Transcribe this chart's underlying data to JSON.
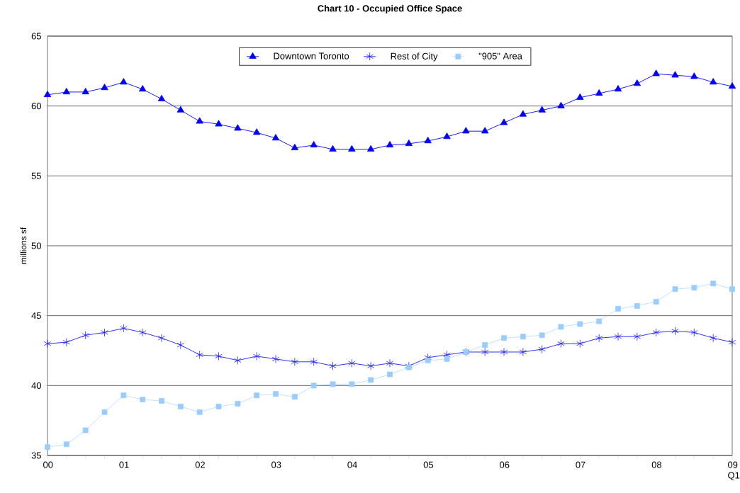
{
  "chart_data": {
    "type": "line",
    "title": "Chart 10 - Occupied Office Space",
    "ylabel": "millions sf",
    "categories": [
      "00",
      null,
      null,
      null,
      "01",
      null,
      null,
      null,
      "02",
      null,
      null,
      null,
      "03",
      null,
      null,
      null,
      "04",
      null,
      null,
      null,
      "05",
      null,
      null,
      null,
      "06",
      null,
      null,
      null,
      "07",
      null,
      null,
      null,
      "08",
      null,
      null,
      null,
      "09 Q1"
    ],
    "ylim": [
      35,
      65
    ],
    "yticks": [
      35,
      40,
      45,
      50,
      55,
      60,
      65
    ],
    "grid": "y",
    "legend": "top",
    "series": [
      {
        "name": "Downtown Toronto",
        "color": "#0000ff",
        "marker": "triangle",
        "values": [
          60.8,
          61.0,
          61.0,
          61.3,
          61.7,
          61.2,
          60.5,
          59.7,
          58.9,
          58.7,
          58.4,
          58.1,
          57.7,
          57.0,
          57.2,
          56.9,
          56.9,
          56.9,
          57.2,
          57.3,
          57.5,
          57.8,
          58.2,
          58.2,
          58.8,
          59.4,
          59.7,
          60.0,
          60.6,
          60.9,
          61.2,
          61.6,
          62.3,
          62.2,
          62.1,
          61.7,
          61.4
        ]
      },
      {
        "name": "Rest of City",
        "color": "#1a1aff",
        "marker": "cross",
        "values": [
          43.0,
          43.1,
          43.6,
          43.8,
          44.1,
          43.8,
          43.4,
          42.9,
          42.2,
          42.1,
          41.8,
          42.1,
          41.9,
          41.7,
          41.7,
          41.4,
          41.6,
          41.4,
          41.6,
          41.4,
          42.0,
          42.2,
          42.4,
          42.4,
          42.4,
          42.4,
          42.6,
          43.0,
          43.0,
          43.4,
          43.5,
          43.5,
          43.8,
          43.9,
          43.8,
          43.4,
          43.1
        ]
      },
      {
        "name": "\"905\" Area",
        "color": "#99ccff",
        "marker": "square",
        "values": [
          35.6,
          35.8,
          36.8,
          38.1,
          39.3,
          39.0,
          38.9,
          38.5,
          38.1,
          38.5,
          38.7,
          39.3,
          39.4,
          39.2,
          40.0,
          40.1,
          40.1,
          40.4,
          40.8,
          41.3,
          41.8,
          41.9,
          42.4,
          42.9,
          43.4,
          43.5,
          43.6,
          44.2,
          44.4,
          44.6,
          45.5,
          45.7,
          46.0,
          46.9,
          47.0,
          47.3,
          46.9
        ]
      }
    ]
  }
}
